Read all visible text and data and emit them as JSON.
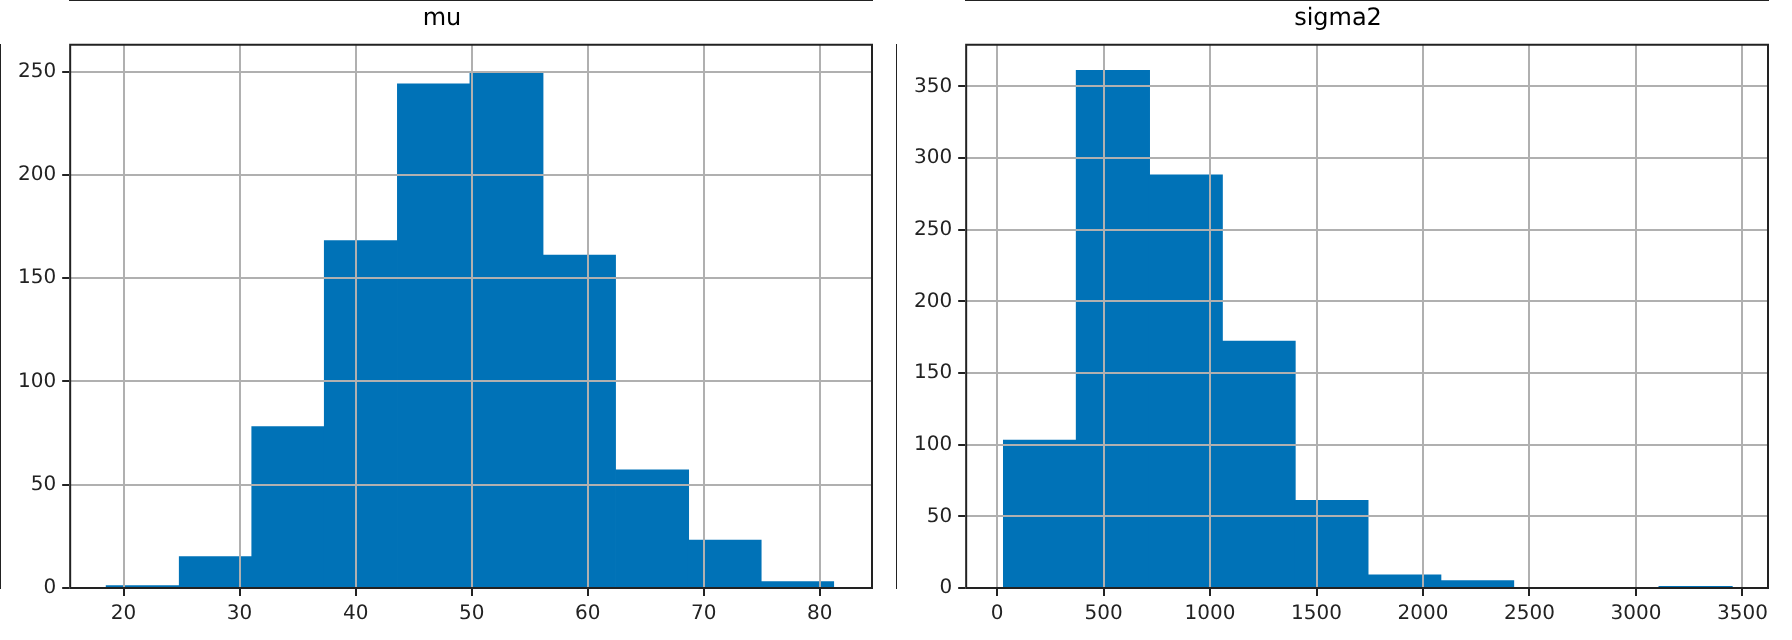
{
  "chart_data": [
    {
      "type": "histogram",
      "title": "mu",
      "bins": [
        18.5,
        24.8,
        31.1,
        37.3,
        43.6,
        49.9,
        56.1,
        62.4,
        68.7,
        74.9,
        81.2
      ],
      "values": [
        1,
        15,
        78,
        168,
        244,
        250,
        161,
        57,
        23,
        3
      ],
      "color": "#0072b7",
      "xlim": [
        15.4,
        84.5
      ],
      "ylim": [
        0,
        263
      ],
      "xticks": [
        20,
        30,
        40,
        50,
        60,
        70,
        80
      ],
      "yticks": [
        0,
        50,
        100,
        150,
        200,
        250
      ],
      "grid": true
    },
    {
      "type": "histogram",
      "title": "sigma2",
      "bins": [
        31,
        373,
        715,
        1057,
        1399,
        1741,
        2083,
        2425,
        2767,
        3109,
        3451
      ],
      "values": [
        103,
        361,
        288,
        172,
        61,
        9,
        5,
        0,
        0,
        1
      ],
      "color": "#0072b7",
      "xlim": [
        -145,
        3620
      ],
      "ylim": [
        0,
        379
      ],
      "xticks": [
        0,
        500,
        1000,
        1500,
        2000,
        2500,
        3000,
        3500
      ],
      "yticks": [
        0,
        50,
        100,
        150,
        200,
        250,
        300,
        350
      ],
      "grid": true
    }
  ]
}
